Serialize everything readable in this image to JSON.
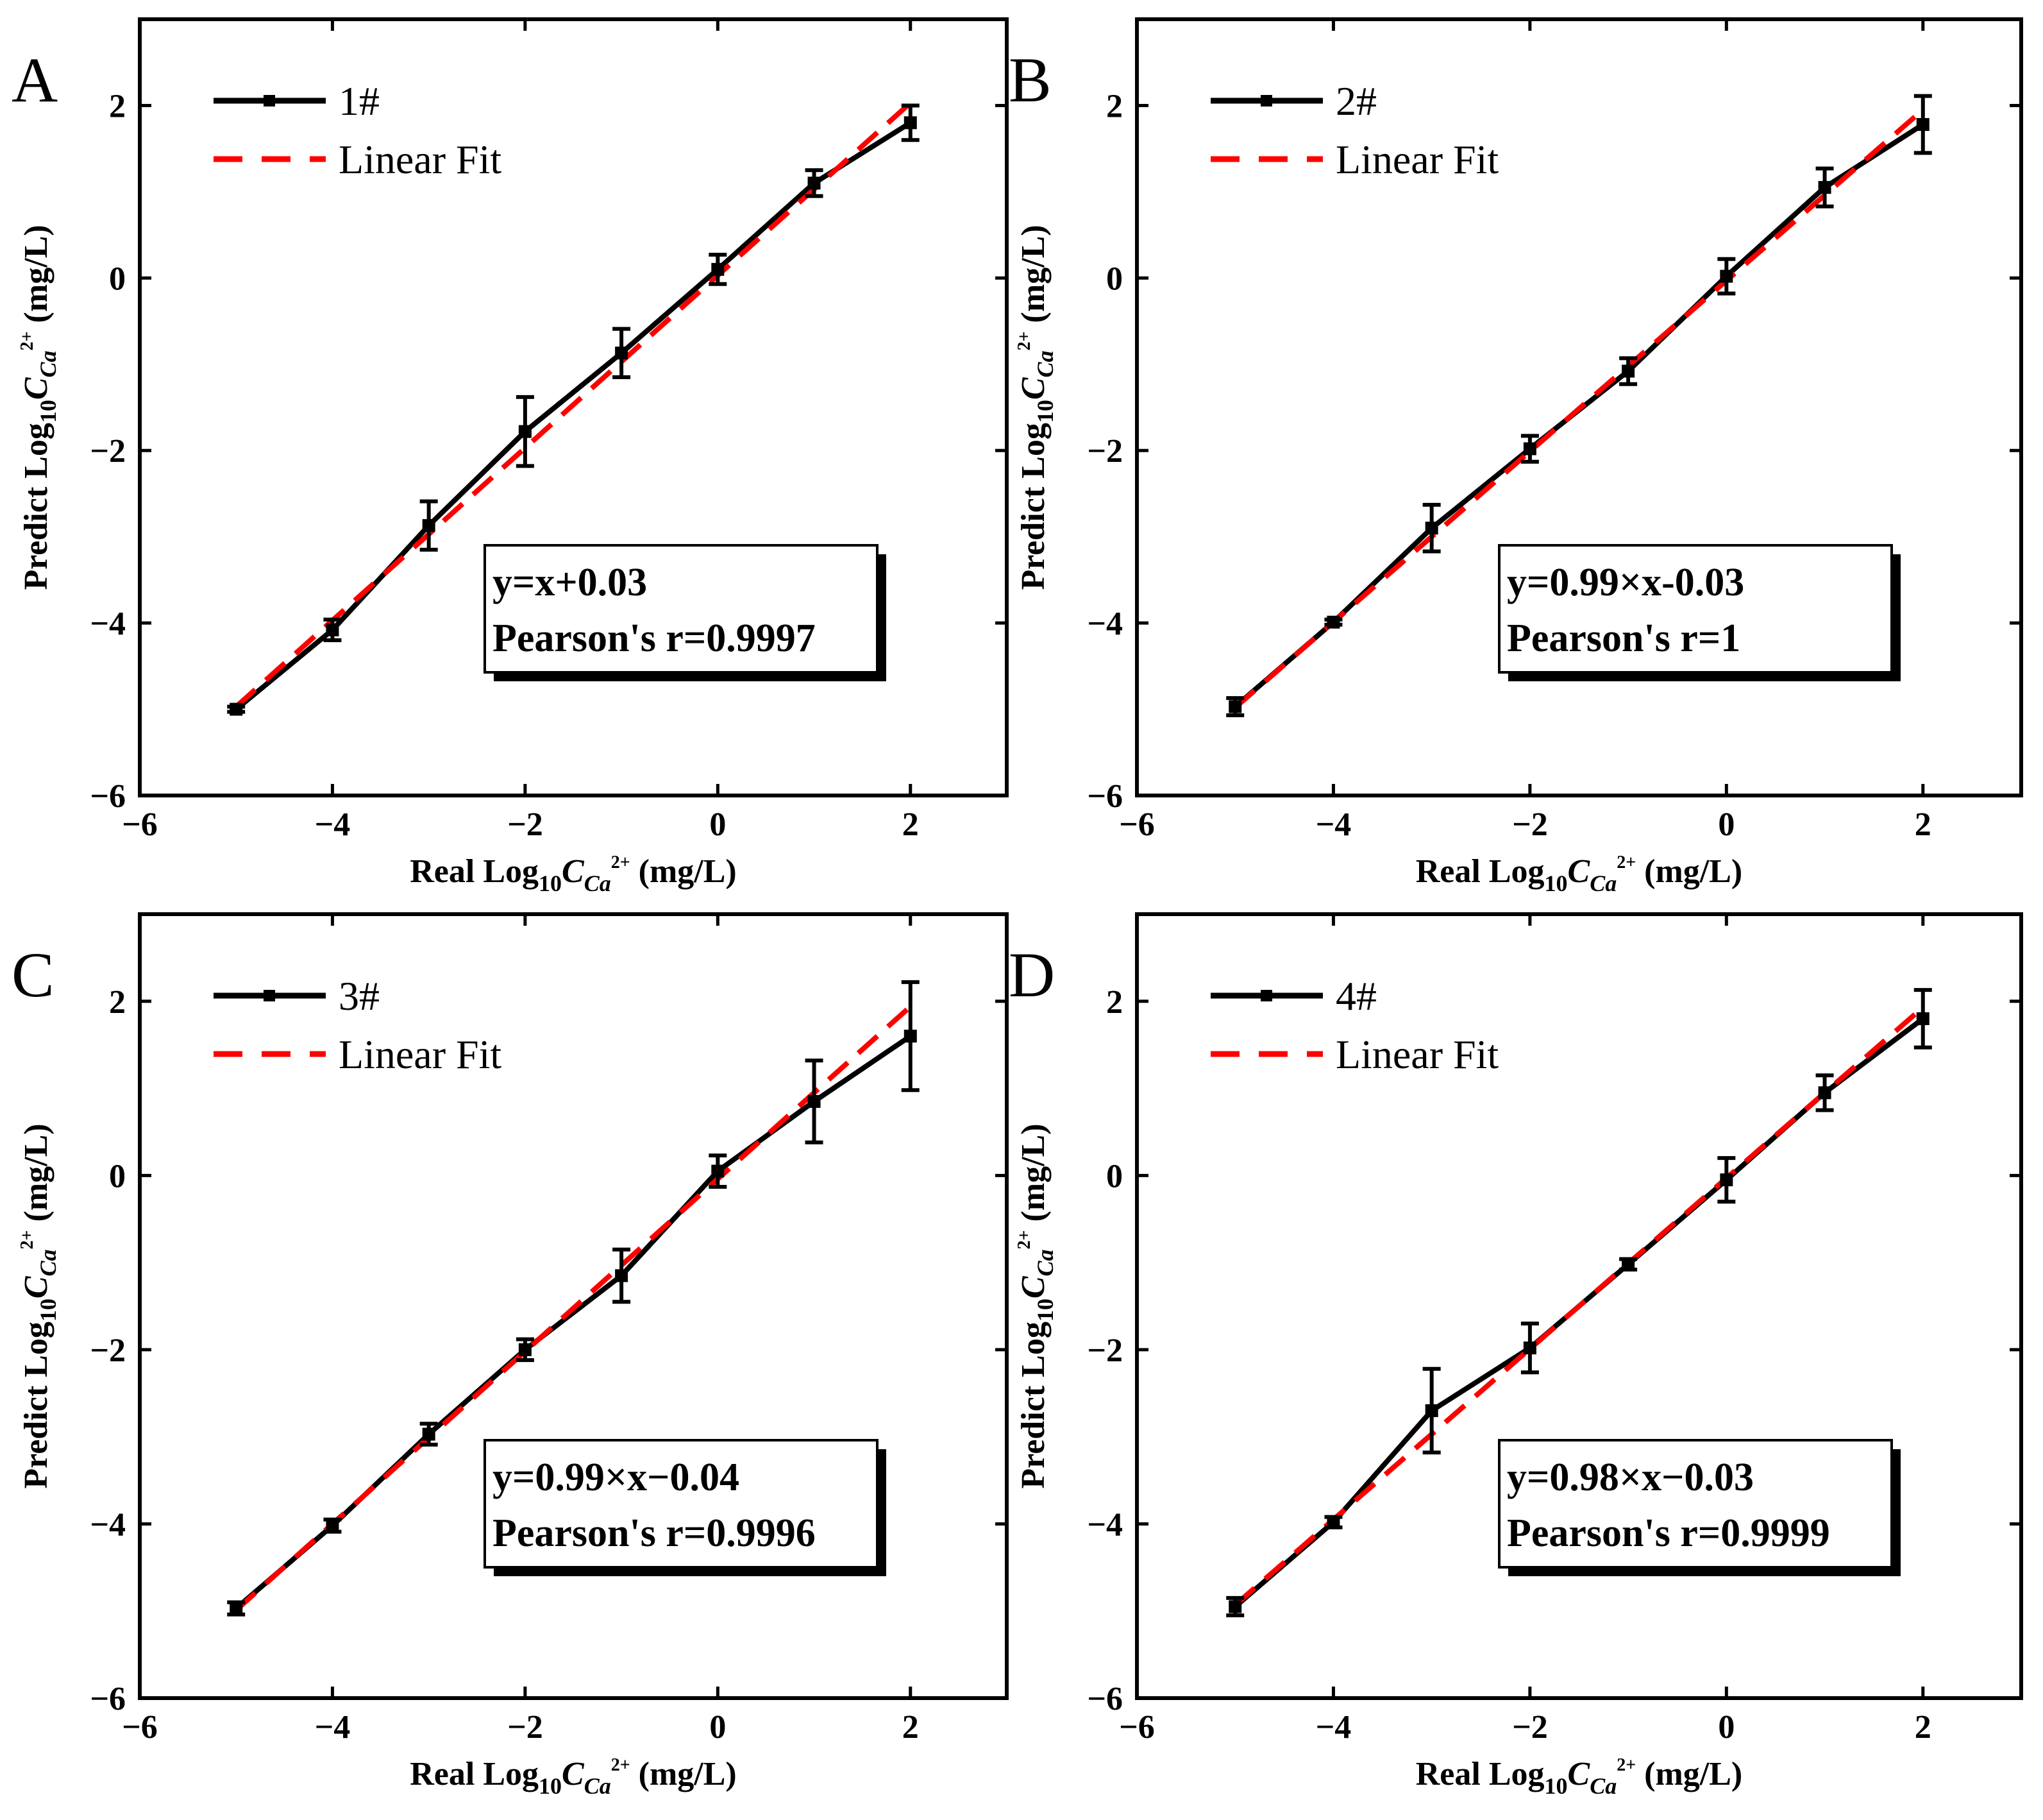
{
  "figure": {
    "background": "#ffffff"
  },
  "style": {
    "data_color": "#000000",
    "fit_color": "#ff0000"
  },
  "chart_data": [
    {
      "type": "line",
      "panel": "A",
      "series_name": "1#",
      "fit_name": "Linear Fit",
      "x": [
        -5,
        -4,
        -3,
        -2,
        -1,
        0,
        1,
        2
      ],
      "y": [
        -5.0,
        -4.08,
        -2.87,
        -1.78,
        -0.87,
        0.1,
        1.1,
        1.8
      ],
      "yerr": [
        0.03,
        0.12,
        0.28,
        0.4,
        0.28,
        0.17,
        0.15,
        0.2
      ],
      "fit": {
        "slope": 1.0,
        "intercept": 0.03
      },
      "equation": "y=x+0.03",
      "pearson": "Pearson's r=0.9997",
      "xlim": [
        -6,
        3
      ],
      "ylim": [
        -6,
        3
      ],
      "xticks": [
        -6,
        -4,
        -2,
        0,
        2
      ],
      "yticks": [
        -6,
        -4,
        -2,
        0,
        2
      ],
      "xtick_labels": [
        "−6",
        "−4",
        "−2",
        "0",
        "2"
      ],
      "ytick_labels": [
        "−6",
        "−4",
        "−2",
        "0",
        "2"
      ],
      "xlabel": {
        "pre": "Real Log",
        "sub": "10",
        "var": "C",
        "varsub": "Ca",
        "sup": "2+",
        "unit": " (mg/L)"
      },
      "ylabel": {
        "pre": "Predict Log",
        "sub": "10",
        "var": "C",
        "varsub": "Ca",
        "sup": "2+",
        "unit": " (mg/L)"
      }
    },
    {
      "type": "line",
      "panel": "B",
      "series_name": "2#",
      "fit_name": "Linear Fit",
      "x": [
        -5,
        -4,
        -3,
        -2,
        -1,
        0,
        1,
        2
      ],
      "y": [
        -4.97,
        -3.99,
        -2.9,
        -1.98,
        -1.08,
        0.02,
        1.05,
        1.78
      ],
      "yerr": [
        0.1,
        0.03,
        0.27,
        0.15,
        0.15,
        0.2,
        0.22,
        0.33
      ],
      "fit": {
        "slope": 0.99,
        "intercept": -0.03
      },
      "equation": "y=0.99×x-0.03",
      "pearson": "Pearson's r=1",
      "xlim": [
        -6,
        3
      ],
      "ylim": [
        -6,
        3
      ],
      "xticks": [
        -6,
        -4,
        -2,
        0,
        2
      ],
      "yticks": [
        -6,
        -4,
        -2,
        0,
        2
      ],
      "xtick_labels": [
        "−6",
        "−4",
        "−2",
        "0",
        "2"
      ],
      "ytick_labels": [
        "−6",
        "−4",
        "−2",
        "0",
        "2"
      ],
      "xlabel": {
        "pre": "Real Log",
        "sub": "10",
        "var": "C",
        "varsub": "Ca",
        "sup": "2+",
        "unit": " (mg/L)"
      },
      "ylabel": {
        "pre": "Predict Log",
        "sub": "10",
        "var": "C",
        "varsub": "Ca",
        "sup": "2+",
        "unit": " (mg/L)"
      }
    },
    {
      "type": "line",
      "panel": "C",
      "series_name": "3#",
      "fit_name": "Linear Fit",
      "x": [
        -5,
        -4,
        -3,
        -2,
        -1,
        0,
        1,
        2
      ],
      "y": [
        -4.97,
        -4.02,
        -2.97,
        -2.0,
        -1.15,
        0.05,
        0.85,
        1.6
      ],
      "yerr": [
        0.07,
        0.07,
        0.12,
        0.12,
        0.3,
        0.18,
        0.47,
        0.62
      ],
      "fit": {
        "slope": 0.99,
        "intercept": -0.04
      },
      "equation": "y=0.99×x−0.04",
      "pearson": "Pearson's r=0.9996",
      "xlim": [
        -6,
        3
      ],
      "ylim": [
        -6,
        3
      ],
      "xticks": [
        -6,
        -4,
        -2,
        0,
        2
      ],
      "yticks": [
        -6,
        -4,
        -2,
        0,
        2
      ],
      "xtick_labels": [
        "−6",
        "−4",
        "−2",
        "0",
        "2"
      ],
      "ytick_labels": [
        "−6",
        "−4",
        "−2",
        "0",
        "2"
      ],
      "xlabel": {
        "pre": "Real Log",
        "sub": "10",
        "var": "C",
        "varsub": "Ca",
        "sup": "2+",
        "unit": " (mg/L)"
      },
      "ylabel": {
        "pre": "Predict Log",
        "sub": "10",
        "var": "C",
        "varsub": "Ca",
        "sup": "2+",
        "unit": " (mg/L)"
      }
    },
    {
      "type": "line",
      "panel": "D",
      "series_name": "4#",
      "fit_name": "Linear Fit",
      "x": [
        -5,
        -4,
        -3,
        -2,
        -1,
        0,
        1,
        2
      ],
      "y": [
        -4.95,
        -3.98,
        -2.7,
        -1.98,
        -1.02,
        -0.05,
        0.95,
        1.8
      ],
      "yerr": [
        0.1,
        0.06,
        0.48,
        0.28,
        0.06,
        0.25,
        0.2,
        0.33
      ],
      "fit": {
        "slope": 0.98,
        "intercept": -0.03
      },
      "equation": "y=0.98×x−0.03",
      "pearson": "Pearson's r=0.9999",
      "xlim": [
        -6,
        3
      ],
      "ylim": [
        -6,
        3
      ],
      "xticks": [
        -6,
        -4,
        -2,
        0,
        2
      ],
      "yticks": [
        -6,
        -4,
        -2,
        0,
        2
      ],
      "xtick_labels": [
        "−6",
        "−4",
        "−2",
        "0",
        "2"
      ],
      "ytick_labels": [
        "−6",
        "−4",
        "−2",
        "0",
        "2"
      ],
      "xlabel": {
        "pre": "Real Log",
        "sub": "10",
        "var": "C",
        "varsub": "Ca",
        "sup": "2+",
        "unit": " (mg/L)"
      },
      "ylabel": {
        "pre": "Predict Log",
        "sub": "10",
        "var": "C",
        "varsub": "Ca",
        "sup": "2+",
        "unit": " (mg/L)"
      }
    }
  ]
}
